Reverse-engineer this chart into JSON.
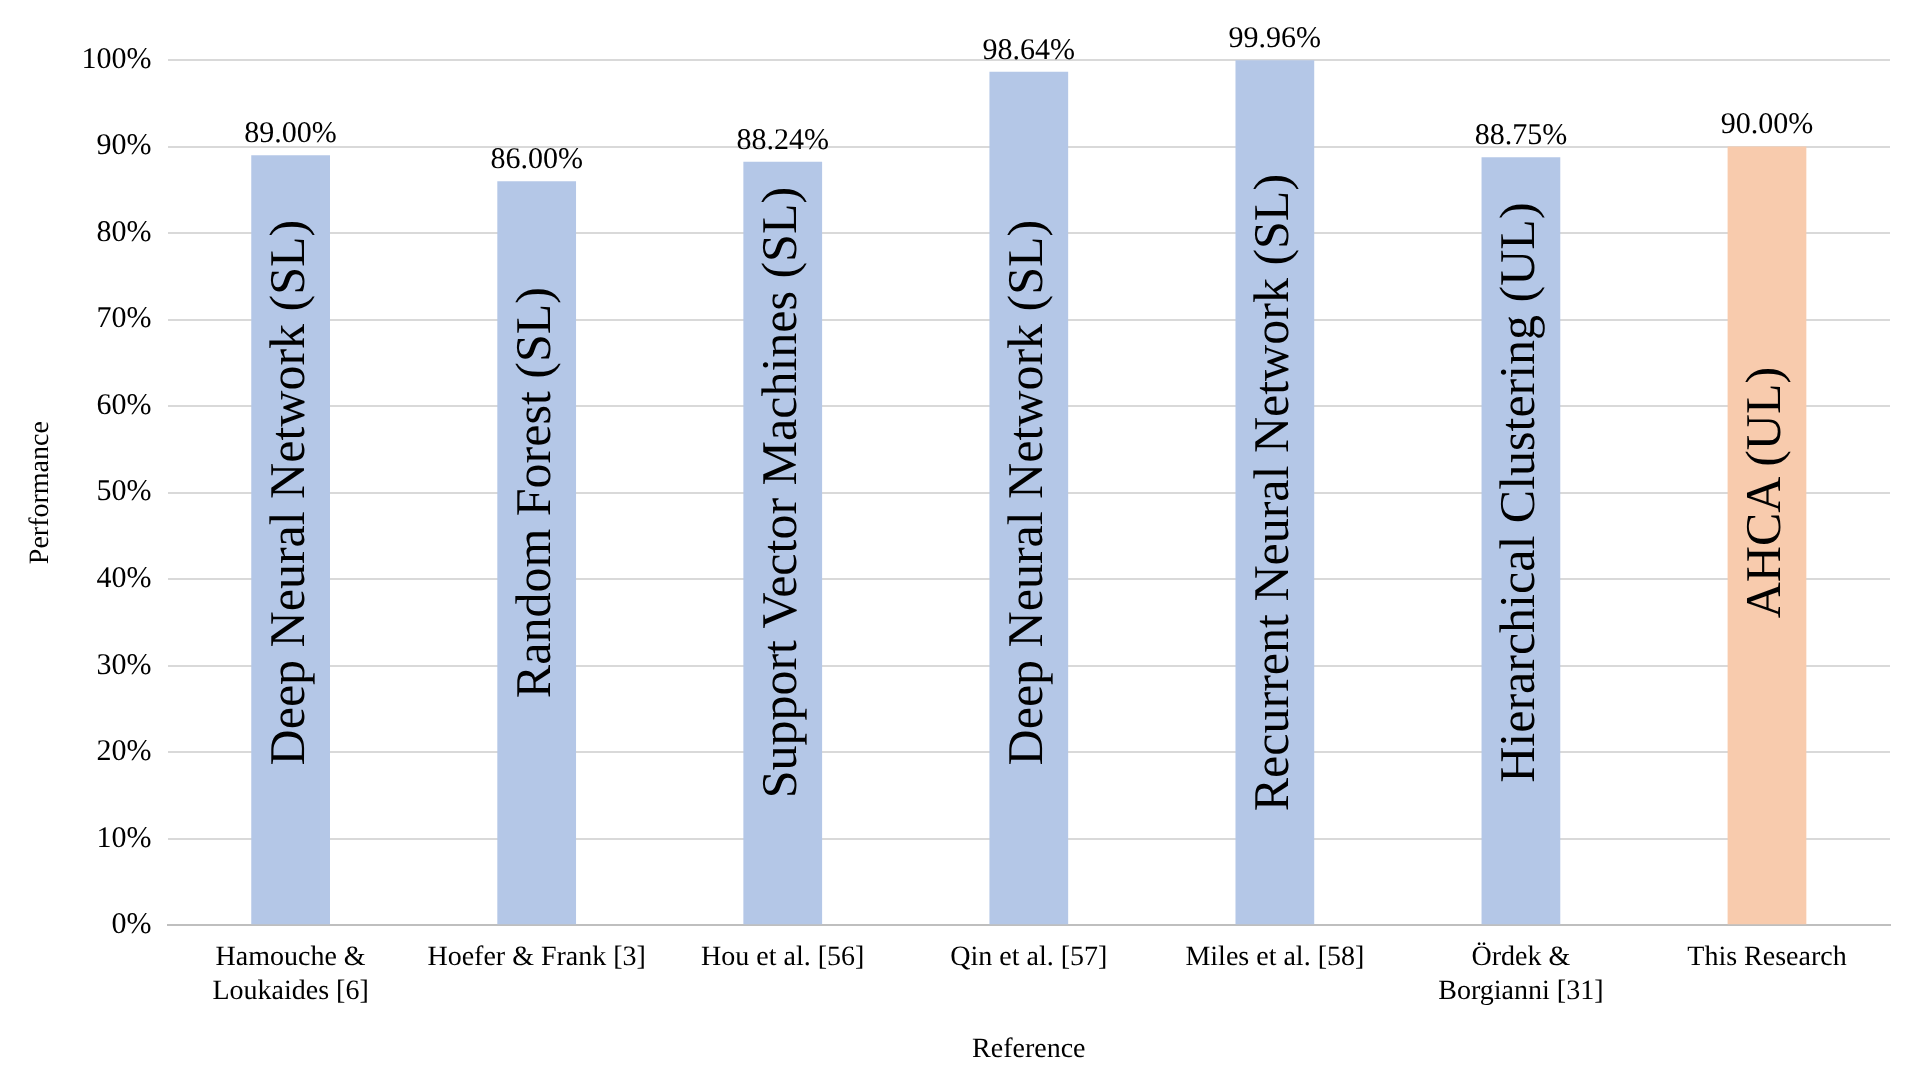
{
  "chart_data": {
    "type": "bar",
    "xlabel": "Reference",
    "ylabel": "Performance",
    "categories": [
      "Hamouche & Loukaides [6]",
      "Hoefer & Frank [3]",
      "Hou et al. [56]",
      "Qin et al. [57]",
      "Miles et al. [58]",
      "Ördek & Borgianni [31]",
      "This Research"
    ],
    "values": [
      89,
      86,
      88.24,
      98.64,
      99.96,
      88.75,
      90
    ],
    "colors": [
      "#b4c7e7",
      "#b4c7e7",
      "#b4c7e7",
      "#b4c7e7",
      "#b4c7e7",
      "#b4c7e7",
      "#f8cbad"
    ],
    "value_labels": [
      "89.00%",
      "86.00%",
      "88.24%",
      "98.64%",
      "99.96%",
      "88.75%",
      "90.00%"
    ],
    "ylim": [
      0,
      100
    ],
    "yticks": [
      {
        "value": 0,
        "label": "0%"
      },
      {
        "value": 10,
        "label": "10%"
      },
      {
        "value": 20,
        "label": "20%"
      },
      {
        "value": 30,
        "label": "30%"
      },
      {
        "value": 40,
        "label": "40%"
      },
      {
        "value": 50,
        "label": "50%"
      },
      {
        "value": 60,
        "label": "60%"
      },
      {
        "value": 70,
        "label": "70%"
      },
      {
        "value": 80,
        "label": "80%"
      },
      {
        "value": 90,
        "label": "90%"
      },
      {
        "value": 100,
        "label": "100%"
      }
    ],
    "grid": "y",
    "legend": false,
    "annotations": [
      "Deep Neural Network (SL)",
      "Random Forest (SL)",
      "Support Vector Machines (SL)",
      "Deep Neural Network (SL)",
      "Recurrent Neural Network (SL)",
      "Hierarchical Clustering (UL)",
      "AHCA (UL)"
    ]
  }
}
